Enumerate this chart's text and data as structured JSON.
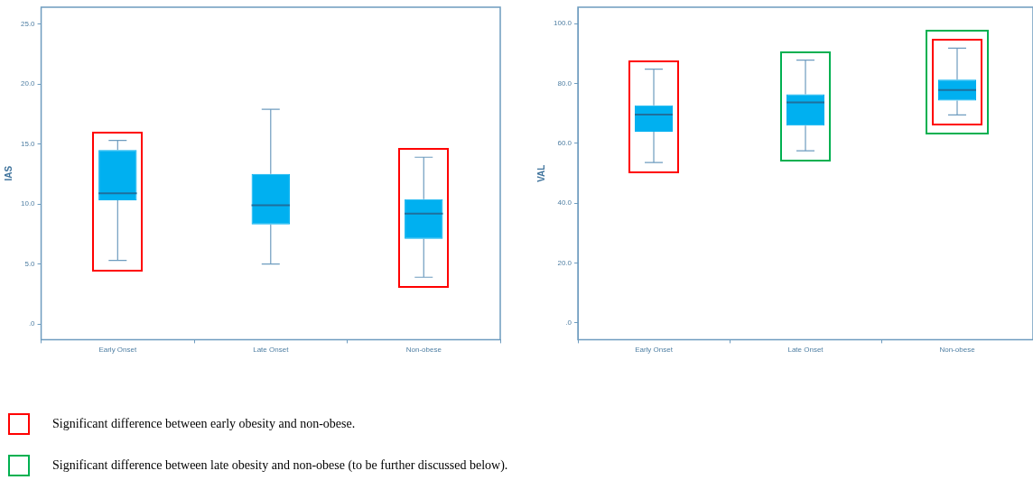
{
  "chart_data": [
    {
      "type": "box",
      "ylabel": "IAS",
      "categories": [
        "Early Onset",
        "Late Onset",
        "Non-obese"
      ],
      "ylim": [
        -1.3,
        26.4
      ],
      "yticks": [
        {
          "value": 0,
          "label": ".0"
        },
        {
          "value": 5,
          "label": "5.0"
        },
        {
          "value": 10,
          "label": "10.0"
        },
        {
          "value": 15,
          "label": "15.0"
        },
        {
          "value": 20,
          "label": "20.0"
        },
        {
          "value": 25,
          "label": "25.0"
        }
      ],
      "grid": false,
      "legend": false,
      "series": [
        {
          "color": "#00b0f0",
          "boxes": [
            {
              "low": 5.3,
              "q1": 10.3,
              "median": 10.9,
              "q3": 14.5,
              "high": 15.3
            },
            {
              "low": 5.0,
              "q1": 8.3,
              "median": 9.9,
              "q3": 12.5,
              "high": 17.9
            },
            {
              "low": 3.9,
              "q1": 7.1,
              "median": 9.2,
              "q3": 10.4,
              "high": 13.9
            }
          ]
        }
      ],
      "annotations": [
        "Significant difference between early obesity and non-obese.",
        "Significant difference between late obesity and non-obese (to be further discussed below)."
      ]
    },
    {
      "type": "box",
      "ylabel": "VAL",
      "categories": [
        "Early Onset",
        "Late Onset",
        "Non-obese"
      ],
      "ylim": [
        -5.6,
        105.5
      ],
      "yticks": [
        {
          "value": 0,
          "label": ".0"
        },
        {
          "value": 20,
          "label": "20.0"
        },
        {
          "value": 40,
          "label": "40.0"
        },
        {
          "value": 60,
          "label": "60.0"
        },
        {
          "value": 80,
          "label": "80.0"
        },
        {
          "value": 100,
          "label": "100.0"
        }
      ],
      "grid": false,
      "legend": false,
      "series": [
        {
          "color": "#00b0f0",
          "boxes": [
            {
              "low": 53.6,
              "q1": 63.9,
              "median": 69.6,
              "q3": 72.7,
              "high": 84.8
            },
            {
              "low": 57.5,
              "q1": 65.9,
              "median": 73.7,
              "q3": 76.4,
              "high": 87.8
            },
            {
              "low": 69.5,
              "q1": 74.3,
              "median": 77.8,
              "q3": 81.3,
              "high": 91.8
            }
          ]
        }
      ]
    }
  ]
}
